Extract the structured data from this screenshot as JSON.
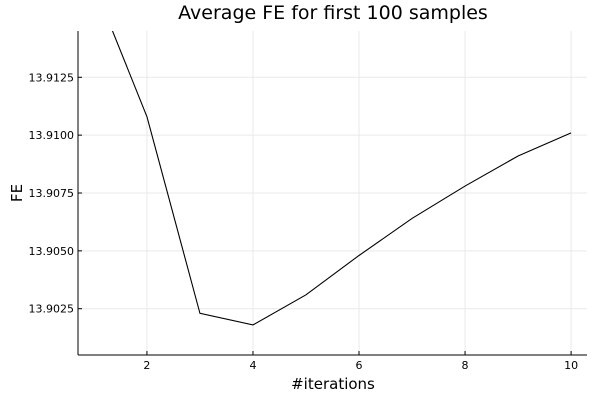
{
  "chart_data": {
    "type": "line",
    "title": "Average FE for first 100 samples",
    "xlabel": "#iterations",
    "ylabel": "FE",
    "xlim": [
      0.7,
      10.3
    ],
    "ylim": [
      13.9005,
      13.9145
    ],
    "xticks": [
      2,
      4,
      6,
      8,
      10
    ],
    "xtick_labels": [
      "2",
      "4",
      "6",
      "8",
      "10"
    ],
    "yticks": [
      13.9025,
      13.905,
      13.9075,
      13.91,
      13.9125
    ],
    "ytick_labels": [
      "13.9025",
      "13.9050",
      "13.9075",
      "13.9100",
      "13.9125"
    ],
    "grid": true,
    "legend": "none",
    "series": [
      {
        "color": "#000000",
        "x": [
          1,
          2,
          3,
          4,
          5,
          6,
          7,
          8,
          9,
          10
        ],
        "y": [
          13.9165,
          13.9108,
          13.9023,
          13.9018,
          13.9031,
          13.9048,
          13.9064,
          13.9078,
          13.9091,
          13.9101
        ]
      }
    ]
  }
}
